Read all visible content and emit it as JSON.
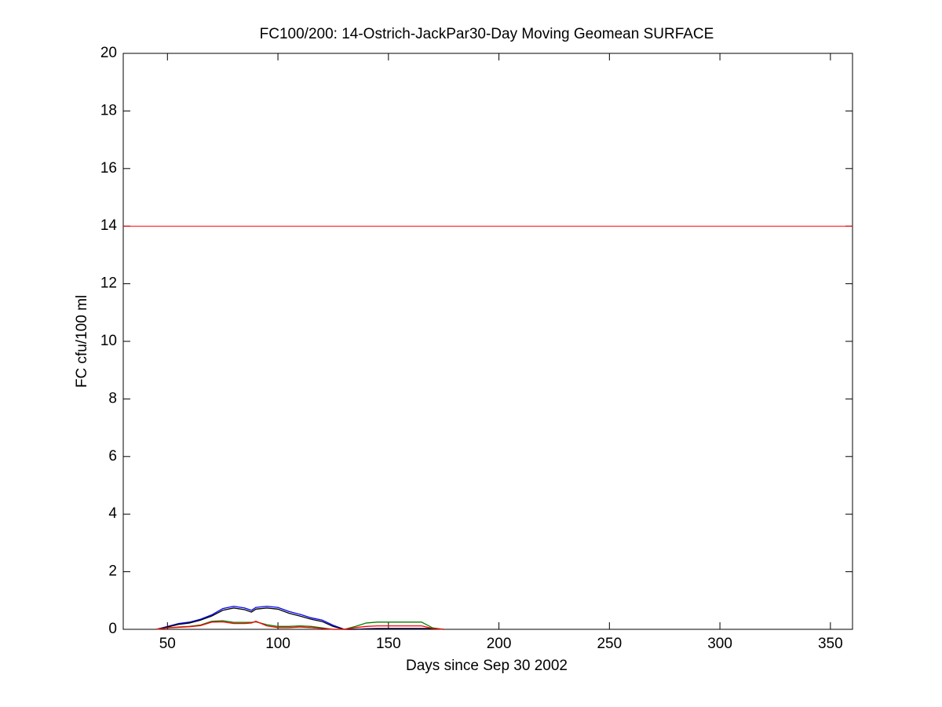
{
  "chart_data": {
    "type": "line",
    "title": "FC100/200: 14-Ostrich-JackPar30-Day Moving Geomean SURFACE",
    "x_label": "Days since Sep 30 2002",
    "y_label": "FC cfu/100 ml",
    "xlim": [
      30,
      360
    ],
    "xticks": [
      50,
      100,
      150,
      200,
      250,
      300,
      350
    ],
    "ylim": [
      0,
      20
    ],
    "yticks": [
      0,
      2,
      4,
      6,
      8,
      10,
      12,
      14,
      16,
      18,
      20
    ],
    "reference_line": {
      "value": 14,
      "color": "#ff0000"
    },
    "x": [
      45,
      50,
      55,
      60,
      65,
      70,
      75,
      80,
      85,
      88,
      90,
      95,
      100,
      105,
      110,
      115,
      120,
      125,
      130,
      135,
      140,
      145,
      150,
      155,
      160,
      165,
      170,
      175
    ],
    "series": [
      {
        "color": "#0000ff",
        "values": [
          0,
          0.1,
          0.2,
          0.25,
          0.35,
          0.5,
          0.72,
          0.8,
          0.74,
          0.66,
          0.76,
          0.8,
          0.76,
          0.62,
          0.52,
          0.4,
          0.32,
          0.14,
          0,
          0,
          0.02,
          0.03,
          0.03,
          0.03,
          0.03,
          0.03,
          0.03,
          0
        ]
      },
      {
        "color": "#000000",
        "values": [
          0,
          0.08,
          0.17,
          0.22,
          0.32,
          0.46,
          0.66,
          0.74,
          0.68,
          0.6,
          0.7,
          0.74,
          0.7,
          0.56,
          0.46,
          0.35,
          0.27,
          0.1,
          0,
          0,
          0.01,
          0.02,
          0.02,
          0.02,
          0.02,
          0.02,
          0.02,
          0
        ]
      },
      {
        "color": "#008000",
        "values": [
          0,
          0.05,
          0.08,
          0.1,
          0.15,
          0.28,
          0.3,
          0.24,
          0.24,
          0.24,
          0.26,
          0.16,
          0.1,
          0.1,
          0.12,
          0.1,
          0.05,
          0,
          0,
          0.1,
          0.22,
          0.25,
          0.25,
          0.25,
          0.25,
          0.25,
          0.05,
          0
        ]
      },
      {
        "color": "#ff0000",
        "values": [
          0,
          0.05,
          0.07,
          0.09,
          0.13,
          0.25,
          0.26,
          0.2,
          0.2,
          0.22,
          0.28,
          0.12,
          0.06,
          0.06,
          0.08,
          0.06,
          0.03,
          0,
          0,
          0.06,
          0.1,
          0.12,
          0.12,
          0.12,
          0.12,
          0.12,
          0.03,
          0
        ]
      }
    ]
  }
}
